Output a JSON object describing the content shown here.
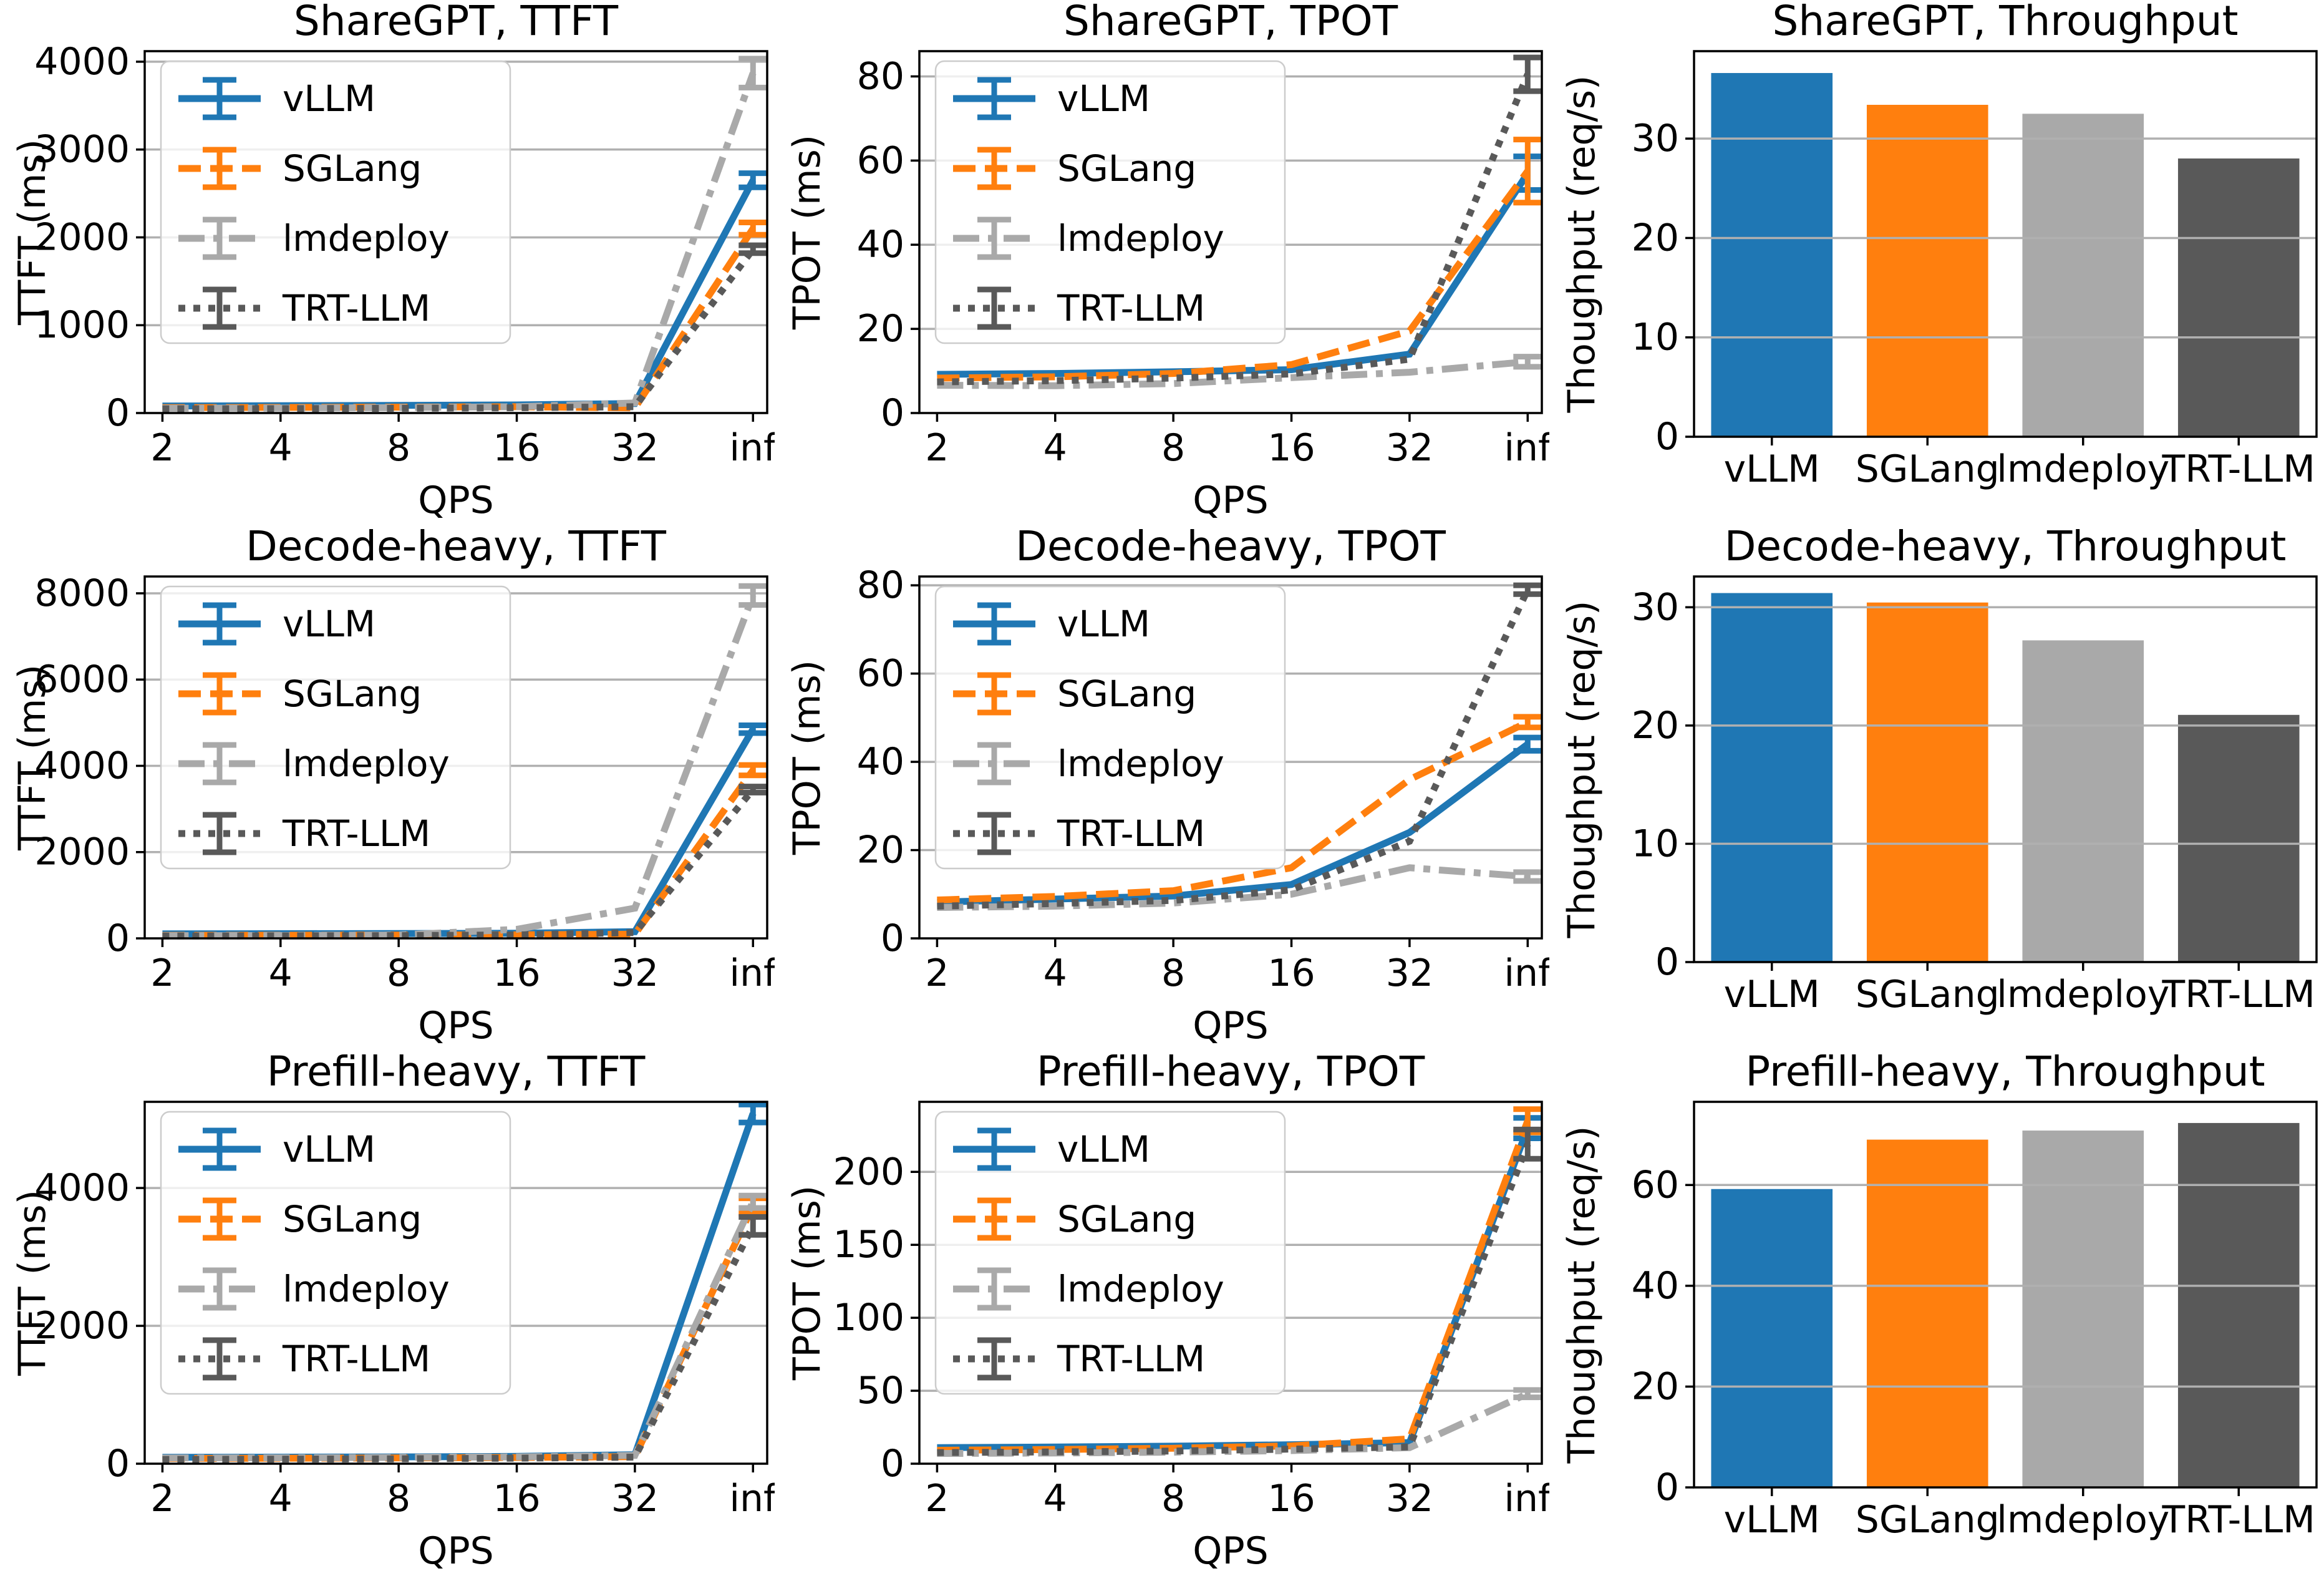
{
  "figure": {
    "background": "#ffffff",
    "gridline_color": "#b0b0b0",
    "spine_color": "#000000"
  },
  "series_styles": [
    {
      "name": "vLLM",
      "color": "#1f77b4",
      "dash": "solid"
    },
    {
      "name": "SGLang",
      "color": "#ff7f0e",
      "dash": "dashed"
    },
    {
      "name": "lmdeploy",
      "color": "#a9a9a9",
      "dash": "dashdot"
    },
    {
      "name": "TRT-LLM",
      "color": "#595959",
      "dash": "dotted"
    }
  ],
  "chart_data": [
    {
      "type": "line",
      "title": "ShareGPT, TTFT",
      "xlabel": "QPS",
      "ylabel": "TTFT (ms)",
      "x_ticklabels": [
        "2",
        "4",
        "8",
        "16",
        "32",
        "inf"
      ],
      "yticks": [
        0,
        1000,
        2000,
        3000,
        4000
      ],
      "ylim": [
        0,
        4120
      ],
      "grid": true,
      "legend": true,
      "series": [
        {
          "name": "vLLM",
          "values": [
            80,
            83,
            87,
            92,
            108,
            2650
          ],
          "err_last": 80
        },
        {
          "name": "SGLang",
          "values": [
            62,
            64,
            67,
            72,
            58,
            2100
          ],
          "err_last": 70
        },
        {
          "name": "lmdeploy",
          "values": [
            55,
            57,
            62,
            72,
            115,
            3870
          ],
          "err_last": 165
        },
        {
          "name": "TRT-LLM",
          "values": [
            48,
            50,
            54,
            60,
            72,
            1865
          ],
          "err_last": 45
        }
      ]
    },
    {
      "type": "line",
      "title": "ShareGPT, TPOT",
      "xlabel": "QPS",
      "ylabel": "TPOT (ms)",
      "x_ticklabels": [
        "2",
        "4",
        "8",
        "16",
        "32",
        "inf"
      ],
      "yticks": [
        0,
        20,
        40,
        60,
        80
      ],
      "ylim": [
        0,
        86
      ],
      "grid": true,
      "legend": true,
      "series": [
        {
          "name": "vLLM",
          "values": [
            9.2,
            9.4,
            9.8,
            10.3,
            14,
            57
          ],
          "err_last": 4
        },
        {
          "name": "SGLang",
          "values": [
            8.3,
            8.6,
            9.4,
            11.5,
            19.5,
            57.5
          ],
          "err_last": 7.5
        },
        {
          "name": "lmdeploy",
          "values": [
            6.6,
            6.5,
            7,
            8.4,
            9.7,
            12.2
          ],
          "err_last": 1.2
        },
        {
          "name": "TRT-LLM",
          "values": [
            7.4,
            7.7,
            8.3,
            9.3,
            12.8,
            80.5
          ],
          "err_last": 4
        }
      ]
    },
    {
      "type": "bar",
      "title": "ShareGPT, Throughput",
      "ylabel": "Thoughput (req/s)",
      "categories": [
        "vLLM",
        "SGLang",
        "lmdeploy",
        "TRT-LLM"
      ],
      "values": [
        36.6,
        33.4,
        32.5,
        28.0
      ],
      "yticks": [
        0,
        10,
        20,
        30
      ],
      "ylim": [
        0,
        38.8
      ],
      "grid": true
    },
    {
      "type": "line",
      "title": "Decode-heavy, TTFT",
      "xlabel": "QPS",
      "ylabel": "TTFT (ms)",
      "x_ticklabels": [
        "2",
        "4",
        "8",
        "16",
        "32",
        "inf"
      ],
      "yticks": [
        0,
        2000,
        4000,
        6000,
        8000
      ],
      "ylim": [
        0,
        8390
      ],
      "grid": true,
      "legend": true,
      "series": [
        {
          "name": "vLLM",
          "values": [
            105,
            108,
            112,
            118,
            155,
            4850
          ],
          "err_last": 90
        },
        {
          "name": "SGLang",
          "values": [
            70,
            73,
            76,
            82,
            95,
            3900
          ],
          "err_last": 120
        },
        {
          "name": "lmdeploy",
          "values": [
            62,
            66,
            78,
            210,
            700,
            7950
          ],
          "err_last": 220
        },
        {
          "name": "TRT-LLM",
          "values": [
            55,
            58,
            63,
            80,
            135,
            3450
          ],
          "err_last": 70
        }
      ]
    },
    {
      "type": "line",
      "title": "Decode-heavy, TPOT",
      "xlabel": "QPS",
      "ylabel": "TPOT (ms)",
      "x_ticklabels": [
        "2",
        "4",
        "8",
        "16",
        "32",
        "inf"
      ],
      "yticks": [
        0,
        20,
        40,
        60,
        80
      ],
      "ylim": [
        0,
        82
      ],
      "grid": true,
      "legend": true,
      "series": [
        {
          "name": "vLLM",
          "values": [
            8.2,
            8.9,
            9.6,
            12.2,
            24,
            44
          ],
          "err_last": 1.5
        },
        {
          "name": "SGLang",
          "values": [
            8.7,
            9.5,
            10.8,
            16,
            36,
            49
          ],
          "err_last": 1.2
        },
        {
          "name": "lmdeploy",
          "values": [
            7,
            7.3,
            8,
            10,
            16,
            14
          ],
          "err_last": 1
        },
        {
          "name": "TRT-LLM",
          "values": [
            7.3,
            7.9,
            8.6,
            11,
            22,
            79
          ],
          "err_last": 1
        }
      ]
    },
    {
      "type": "bar",
      "title": "Decode-heavy, Throughput",
      "ylabel": "Thoughput (req/s)",
      "categories": [
        "vLLM",
        "SGLang",
        "lmdeploy",
        "TRT-LLM"
      ],
      "values": [
        31.2,
        30.4,
        27.2,
        20.9
      ],
      "yticks": [
        0,
        10,
        20,
        30
      ],
      "ylim": [
        0,
        32.6
      ],
      "grid": true
    },
    {
      "type": "line",
      "title": "Prefill-heavy, TTFT",
      "xlabel": "QPS",
      "ylabel": "TTFT (ms)",
      "x_ticklabels": [
        "2",
        "4",
        "8",
        "16",
        "32",
        "inf"
      ],
      "yticks": [
        0,
        2000,
        4000
      ],
      "ylim": [
        0,
        5250
      ],
      "grid": true,
      "legend": true,
      "series": [
        {
          "name": "vLLM",
          "values": [
            92,
            95,
            99,
            106,
            130,
            5080
          ],
          "err_last": 130
        },
        {
          "name": "SGLang",
          "values": [
            76,
            79,
            83,
            90,
            102,
            3740
          ],
          "err_last": 110
        },
        {
          "name": "lmdeploy",
          "values": [
            82,
            86,
            91,
            99,
            120,
            3800
          ],
          "err_last": 90
        },
        {
          "name": "TRT-LLM",
          "values": [
            62,
            66,
            71,
            80,
            95,
            3450
          ],
          "err_last": 130
        }
      ]
    },
    {
      "type": "line",
      "title": "Prefill-heavy, TPOT",
      "xlabel": "QPS",
      "ylabel": "TPOT (ms)",
      "x_ticklabels": [
        "2",
        "4",
        "8",
        "16",
        "32",
        "inf"
      ],
      "yticks": [
        0,
        50,
        100,
        150,
        200
      ],
      "ylim": [
        0,
        248
      ],
      "grid": true,
      "legend": true,
      "series": [
        {
          "name": "vLLM",
          "values": [
            11,
            11.4,
            12,
            13,
            14.5,
            230
          ],
          "err_last": 7
        },
        {
          "name": "SGLang",
          "values": [
            9.2,
            9.7,
            10.6,
            12.2,
            17,
            235
          ],
          "err_last": 8
        },
        {
          "name": "lmdeploy",
          "values": [
            7,
            7.3,
            7.9,
            9,
            11,
            48
          ],
          "err_last": 2.5
        },
        {
          "name": "TRT-LLM",
          "values": [
            7.6,
            8.1,
            8.7,
            10,
            11.5,
            219
          ],
          "err_last": 10
        }
      ]
    },
    {
      "type": "bar",
      "title": "Prefill-heavy, Throughput",
      "ylabel": "Thoughput (req/s)",
      "categories": [
        "vLLM",
        "SGLang",
        "lmdeploy",
        "TRT-LLM"
      ],
      "values": [
        59.2,
        69.0,
        70.8,
        72.3
      ],
      "yticks": [
        0,
        20,
        40,
        60
      ],
      "ylim": [
        0,
        76.5
      ],
      "grid": true
    }
  ]
}
